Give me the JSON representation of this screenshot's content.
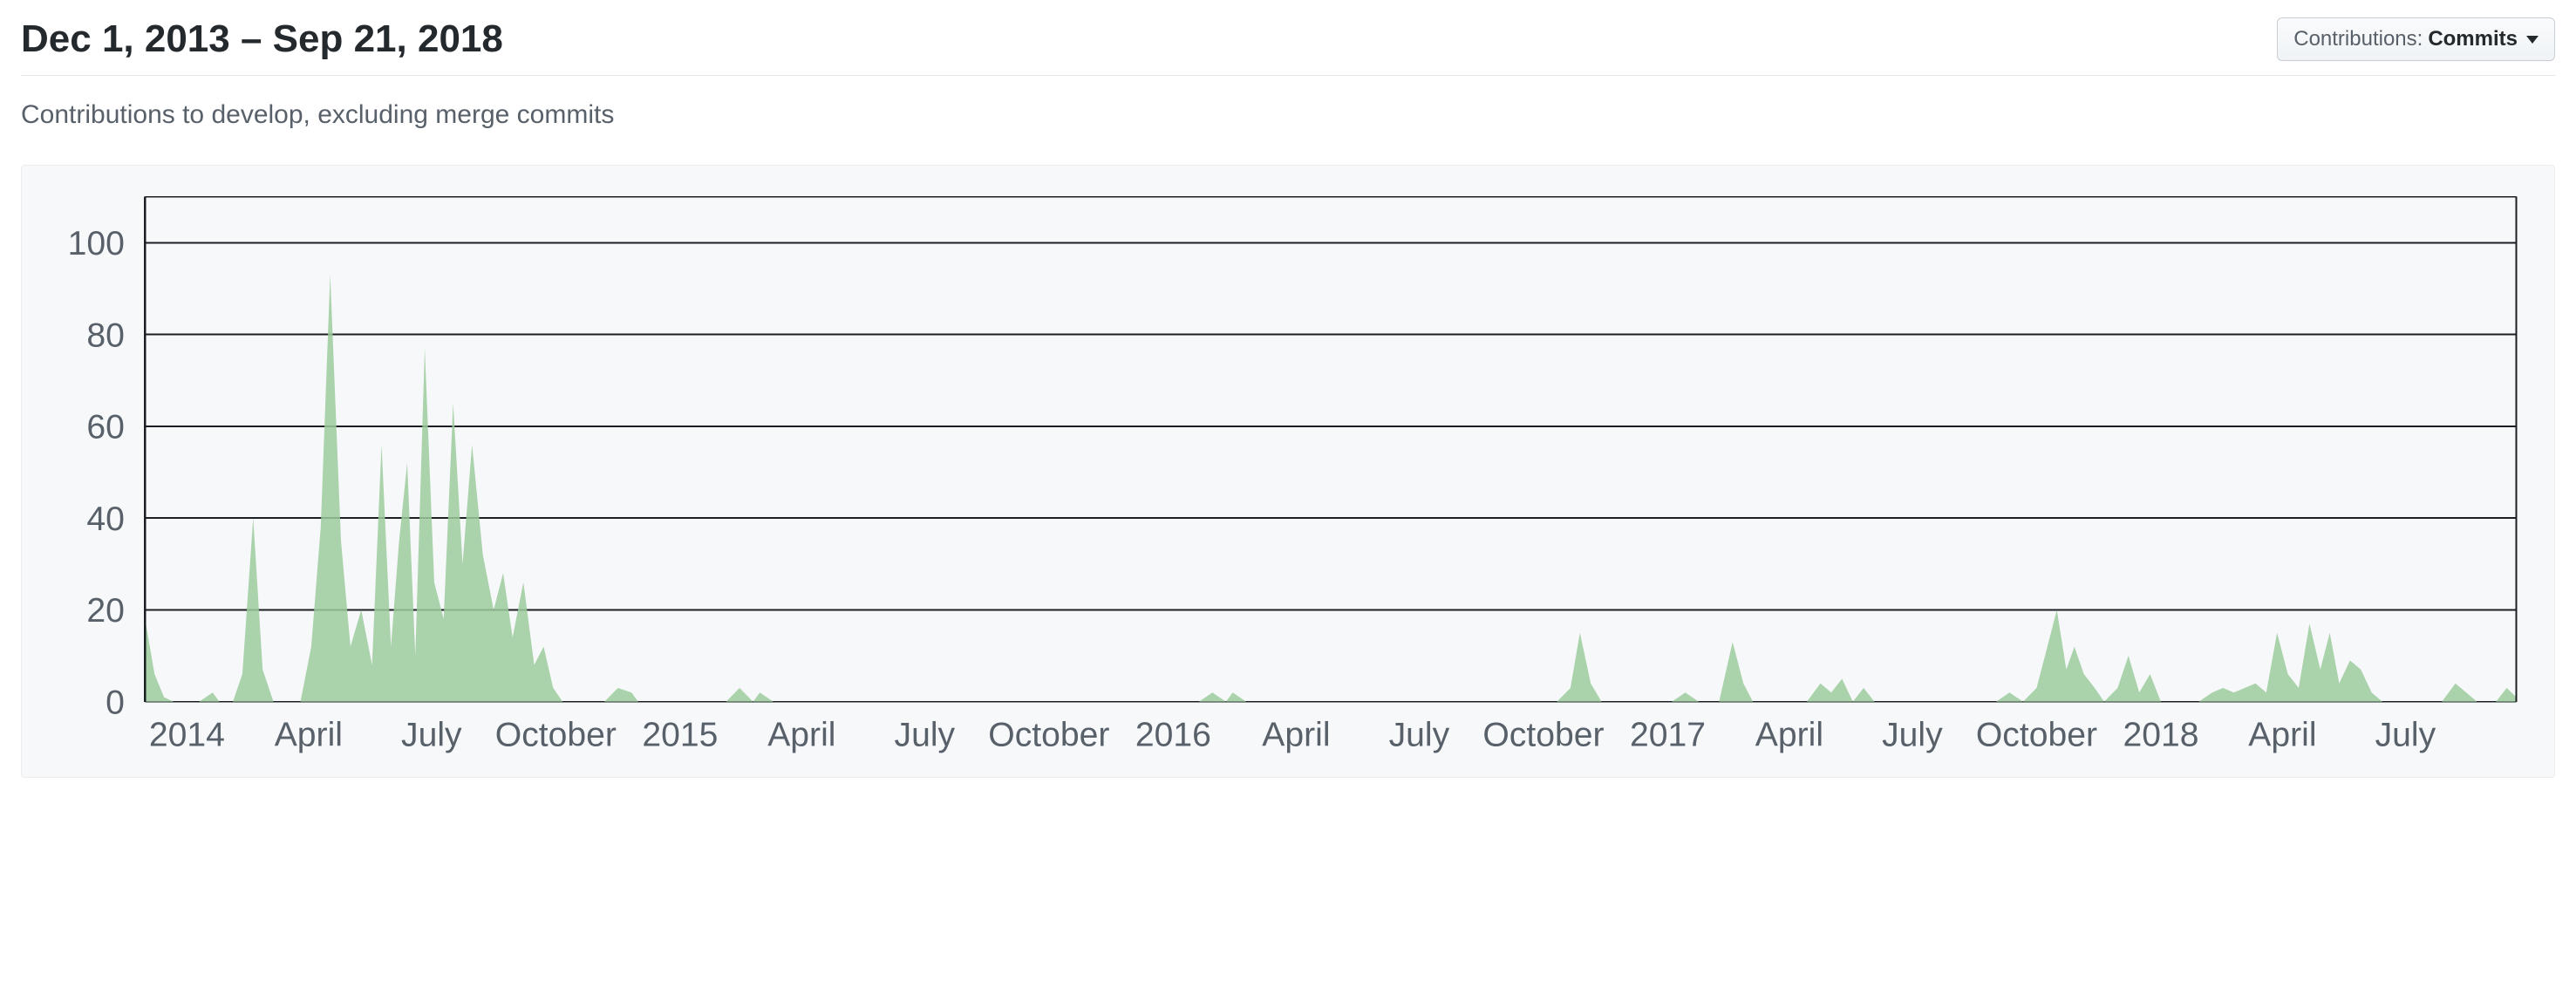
{
  "header": {
    "title": "Dec 1, 2013 – Sep 21, 2018",
    "dropdown_label": "Contributions:",
    "dropdown_value": "Commits"
  },
  "subtitle": "Contributions to develop, excluding merge commits",
  "chart": {
    "type": "area",
    "background_color": "#f6f8fa",
    "area_color": "#9ccb9c",
    "grid_color": "#1b1f23",
    "axis_text_color": "#586069",
    "ylim": [
      0,
      110
    ],
    "ytick_step": 20,
    "yticks": [
      0,
      20,
      40,
      60,
      80,
      100
    ],
    "x_start": "2013-12-01",
    "x_end": "2018-09-21",
    "x_ticks": [
      {
        "t": 31,
        "label": "2014"
      },
      {
        "t": 121,
        "label": "April"
      },
      {
        "t": 212,
        "label": "July"
      },
      {
        "t": 304,
        "label": "October"
      },
      {
        "t": 396,
        "label": "2015"
      },
      {
        "t": 486,
        "label": "April"
      },
      {
        "t": 577,
        "label": "July"
      },
      {
        "t": 669,
        "label": "October"
      },
      {
        "t": 761,
        "label": "2016"
      },
      {
        "t": 852,
        "label": "April"
      },
      {
        "t": 943,
        "label": "July"
      },
      {
        "t": 1035,
        "label": "October"
      },
      {
        "t": 1127,
        "label": "2017"
      },
      {
        "t": 1217,
        "label": "April"
      },
      {
        "t": 1308,
        "label": "July"
      },
      {
        "t": 1400,
        "label": "October"
      },
      {
        "t": 1492,
        "label": "2018"
      },
      {
        "t": 1582,
        "label": "April"
      },
      {
        "t": 1673,
        "label": "July"
      }
    ],
    "total_days": 1755,
    "series": [
      {
        "t": 0,
        "v": 18
      },
      {
        "t": 7,
        "v": 6
      },
      {
        "t": 14,
        "v": 1
      },
      {
        "t": 21,
        "v": 0
      },
      {
        "t": 40,
        "v": 0
      },
      {
        "t": 50,
        "v": 2
      },
      {
        "t": 55,
        "v": 0
      },
      {
        "t": 65,
        "v": 0
      },
      {
        "t": 72,
        "v": 6
      },
      {
        "t": 80,
        "v": 40
      },
      {
        "t": 87,
        "v": 7
      },
      {
        "t": 95,
        "v": 0
      },
      {
        "t": 115,
        "v": 0
      },
      {
        "t": 123,
        "v": 12
      },
      {
        "t": 130,
        "v": 38
      },
      {
        "t": 137,
        "v": 93
      },
      {
        "t": 145,
        "v": 35
      },
      {
        "t": 152,
        "v": 12
      },
      {
        "t": 160,
        "v": 20
      },
      {
        "t": 168,
        "v": 8
      },
      {
        "t": 175,
        "v": 56
      },
      {
        "t": 182,
        "v": 12
      },
      {
        "t": 188,
        "v": 35
      },
      {
        "t": 194,
        "v": 52
      },
      {
        "t": 200,
        "v": 10
      },
      {
        "t": 207,
        "v": 77
      },
      {
        "t": 214,
        "v": 26
      },
      {
        "t": 221,
        "v": 18
      },
      {
        "t": 228,
        "v": 65
      },
      {
        "t": 235,
        "v": 30
      },
      {
        "t": 242,
        "v": 56
      },
      {
        "t": 250,
        "v": 32
      },
      {
        "t": 258,
        "v": 20
      },
      {
        "t": 265,
        "v": 28
      },
      {
        "t": 272,
        "v": 14
      },
      {
        "t": 280,
        "v": 26
      },
      {
        "t": 288,
        "v": 8
      },
      {
        "t": 295,
        "v": 12
      },
      {
        "t": 302,
        "v": 3
      },
      {
        "t": 309,
        "v": 0
      },
      {
        "t": 340,
        "v": 0
      },
      {
        "t": 350,
        "v": 3
      },
      {
        "t": 360,
        "v": 2
      },
      {
        "t": 365,
        "v": 0
      },
      {
        "t": 430,
        "v": 0
      },
      {
        "t": 440,
        "v": 3
      },
      {
        "t": 450,
        "v": 0
      },
      {
        "t": 455,
        "v": 2
      },
      {
        "t": 465,
        "v": 0
      },
      {
        "t": 780,
        "v": 0
      },
      {
        "t": 790,
        "v": 2
      },
      {
        "t": 800,
        "v": 0
      },
      {
        "t": 805,
        "v": 2
      },
      {
        "t": 815,
        "v": 0
      },
      {
        "t": 1045,
        "v": 0
      },
      {
        "t": 1055,
        "v": 3
      },
      {
        "t": 1062,
        "v": 15
      },
      {
        "t": 1070,
        "v": 4
      },
      {
        "t": 1078,
        "v": 0
      },
      {
        "t": 1130,
        "v": 0
      },
      {
        "t": 1140,
        "v": 2
      },
      {
        "t": 1150,
        "v": 0
      },
      {
        "t": 1165,
        "v": 0
      },
      {
        "t": 1175,
        "v": 13
      },
      {
        "t": 1183,
        "v": 4
      },
      {
        "t": 1190,
        "v": 0
      },
      {
        "t": 1230,
        "v": 0
      },
      {
        "t": 1240,
        "v": 4
      },
      {
        "t": 1248,
        "v": 2
      },
      {
        "t": 1256,
        "v": 5
      },
      {
        "t": 1264,
        "v": 0
      },
      {
        "t": 1272,
        "v": 3
      },
      {
        "t": 1280,
        "v": 0
      },
      {
        "t": 1370,
        "v": 0
      },
      {
        "t": 1380,
        "v": 2
      },
      {
        "t": 1390,
        "v": 0
      },
      {
        "t": 1400,
        "v": 3
      },
      {
        "t": 1408,
        "v": 12
      },
      {
        "t": 1415,
        "v": 20
      },
      {
        "t": 1422,
        "v": 7
      },
      {
        "t": 1428,
        "v": 12
      },
      {
        "t": 1435,
        "v": 6
      },
      {
        "t": 1443,
        "v": 3
      },
      {
        "t": 1450,
        "v": 0
      },
      {
        "t": 1460,
        "v": 3
      },
      {
        "t": 1468,
        "v": 10
      },
      {
        "t": 1476,
        "v": 2
      },
      {
        "t": 1484,
        "v": 6
      },
      {
        "t": 1492,
        "v": 0
      },
      {
        "t": 1520,
        "v": 0
      },
      {
        "t": 1530,
        "v": 2
      },
      {
        "t": 1538,
        "v": 3
      },
      {
        "t": 1546,
        "v": 2
      },
      {
        "t": 1554,
        "v": 3
      },
      {
        "t": 1562,
        "v": 4
      },
      {
        "t": 1570,
        "v": 2
      },
      {
        "t": 1578,
        "v": 15
      },
      {
        "t": 1586,
        "v": 6
      },
      {
        "t": 1594,
        "v": 3
      },
      {
        "t": 1602,
        "v": 17
      },
      {
        "t": 1610,
        "v": 7
      },
      {
        "t": 1617,
        "v": 15
      },
      {
        "t": 1624,
        "v": 4
      },
      {
        "t": 1632,
        "v": 9
      },
      {
        "t": 1640,
        "v": 7
      },
      {
        "t": 1648,
        "v": 2
      },
      {
        "t": 1656,
        "v": 0
      },
      {
        "t": 1700,
        "v": 0
      },
      {
        "t": 1710,
        "v": 4
      },
      {
        "t": 1718,
        "v": 2
      },
      {
        "t": 1726,
        "v": 0
      },
      {
        "t": 1740,
        "v": 0
      },
      {
        "t": 1748,
        "v": 3
      },
      {
        "t": 1755,
        "v": 1
      }
    ]
  }
}
